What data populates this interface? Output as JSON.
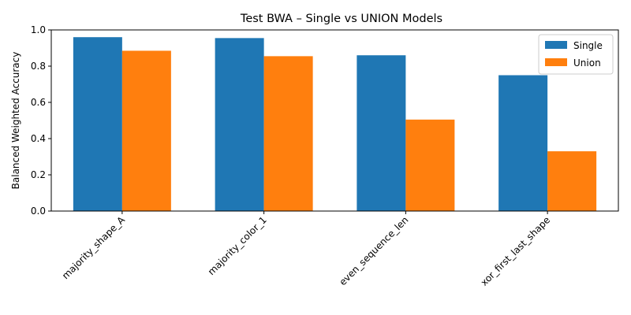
{
  "chart_data": {
    "type": "bar",
    "title": "Test BWA – Single vs UNION Models",
    "xlabel": "",
    "ylabel": "Balanced Weighted Accuracy",
    "categories": [
      "majority_shape_A",
      "majority_color_1",
      "even_sequence_len",
      "xor_first_last_shape"
    ],
    "series": [
      {
        "name": "Single",
        "color": "#1f77b4",
        "values": [
          0.96,
          0.955,
          0.86,
          0.75
        ]
      },
      {
        "name": "Union",
        "color": "#ff7f0e",
        "values": [
          0.885,
          0.855,
          0.505,
          0.33
        ]
      }
    ],
    "ylim": [
      0,
      1.0
    ],
    "yticks": [
      "0.0",
      "0.2",
      "0.4",
      "0.6",
      "0.8",
      "1.0"
    ],
    "ytick_values": [
      0,
      0.2,
      0.4,
      0.6,
      0.8,
      1.0
    ],
    "grid": false,
    "legend_position": "top-right"
  }
}
